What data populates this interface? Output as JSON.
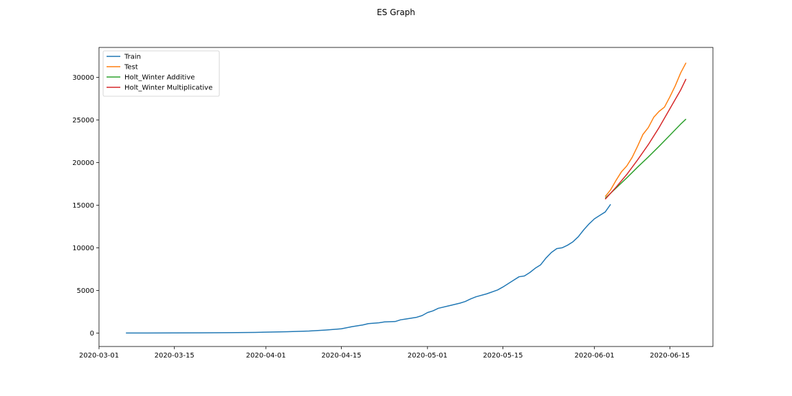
{
  "chart_data": {
    "type": "line",
    "title": "ES Graph",
    "xlabel": "",
    "ylabel": "",
    "x_axis_type": "date",
    "xlim": [
      "2020-03-01",
      "2020-06-23"
    ],
    "ylim": [
      -1580,
      33500
    ],
    "x_ticks": [
      "2020-03-01",
      "2020-03-15",
      "2020-04-01",
      "2020-04-15",
      "2020-05-01",
      "2020-05-15",
      "2020-06-01",
      "2020-06-15"
    ],
    "y_ticks": [
      0,
      5000,
      10000,
      15000,
      20000,
      25000,
      30000
    ],
    "grid": false,
    "legend_position": "top-left",
    "series": [
      {
        "name": "Train",
        "color": "#1f77b4",
        "points": [
          [
            "2020-03-06",
            0
          ],
          [
            "2020-03-10",
            2
          ],
          [
            "2020-03-15",
            10
          ],
          [
            "2020-03-20",
            25
          ],
          [
            "2020-03-25",
            45
          ],
          [
            "2020-03-30",
            75
          ],
          [
            "2020-04-01",
            100
          ],
          [
            "2020-04-05",
            150
          ],
          [
            "2020-04-09",
            230
          ],
          [
            "2020-04-12",
            350
          ],
          [
            "2020-04-14",
            450
          ],
          [
            "2020-04-15",
            500
          ],
          [
            "2020-04-17",
            750
          ],
          [
            "2020-04-19",
            950
          ],
          [
            "2020-04-20",
            1100
          ],
          [
            "2020-04-22",
            1200
          ],
          [
            "2020-04-23",
            1300
          ],
          [
            "2020-04-25",
            1350
          ],
          [
            "2020-04-26",
            1550
          ],
          [
            "2020-04-27",
            1650
          ],
          [
            "2020-04-29",
            1850
          ],
          [
            "2020-04-30",
            2050
          ],
          [
            "2020-05-01",
            2400
          ],
          [
            "2020-05-02",
            2600
          ],
          [
            "2020-05-03",
            2900
          ],
          [
            "2020-05-05",
            3200
          ],
          [
            "2020-05-07",
            3500
          ],
          [
            "2020-05-08",
            3700
          ],
          [
            "2020-05-09",
            4000
          ],
          [
            "2020-05-10",
            4250
          ],
          [
            "2020-05-12",
            4600
          ],
          [
            "2020-05-14",
            5050
          ],
          [
            "2020-05-15",
            5400
          ],
          [
            "2020-05-17",
            6200
          ],
          [
            "2020-05-18",
            6600
          ],
          [
            "2020-05-19",
            6700
          ],
          [
            "2020-05-20",
            7100
          ],
          [
            "2020-05-21",
            7600
          ],
          [
            "2020-05-22",
            8000
          ],
          [
            "2020-05-23",
            8800
          ],
          [
            "2020-05-24",
            9450
          ],
          [
            "2020-05-25",
            9900
          ],
          [
            "2020-05-26",
            10000
          ],
          [
            "2020-05-27",
            10300
          ],
          [
            "2020-05-28",
            10700
          ],
          [
            "2020-05-29",
            11300
          ],
          [
            "2020-05-30",
            12100
          ],
          [
            "2020-05-31",
            12800
          ],
          [
            "2020-06-01",
            13400
          ],
          [
            "2020-06-02",
            13800
          ],
          [
            "2020-06-03",
            14200
          ],
          [
            "2020-06-04",
            15100
          ]
        ]
      },
      {
        "name": "Test",
        "color": "#ff7f0e",
        "points": [
          [
            "2020-06-03",
            16000
          ],
          [
            "2020-06-04",
            16800
          ],
          [
            "2020-06-05",
            17900
          ],
          [
            "2020-06-06",
            18900
          ],
          [
            "2020-06-07",
            19600
          ],
          [
            "2020-06-08",
            20600
          ],
          [
            "2020-06-09",
            21900
          ],
          [
            "2020-06-10",
            23300
          ],
          [
            "2020-06-11",
            24100
          ],
          [
            "2020-06-12",
            25300
          ],
          [
            "2020-06-13",
            26000
          ],
          [
            "2020-06-14",
            26500
          ],
          [
            "2020-06-15",
            27700
          ],
          [
            "2020-06-16",
            29000
          ],
          [
            "2020-06-17",
            30500
          ],
          [
            "2020-06-18",
            31700
          ]
        ]
      },
      {
        "name": "Holt_Winter Additive",
        "color": "#2ca02c",
        "points": [
          [
            "2020-06-03",
            15800
          ],
          [
            "2020-06-05",
            17000
          ],
          [
            "2020-06-07",
            18200
          ],
          [
            "2020-06-09",
            19450
          ],
          [
            "2020-06-11",
            20650
          ],
          [
            "2020-06-13",
            21900
          ],
          [
            "2020-06-15",
            23200
          ],
          [
            "2020-06-17",
            24500
          ],
          [
            "2020-06-18",
            25100
          ]
        ]
      },
      {
        "name": "Holt_Winter Multiplicative",
        "color": "#d62728",
        "points": [
          [
            "2020-06-03",
            15700
          ],
          [
            "2020-06-05",
            17100
          ],
          [
            "2020-06-07",
            18600
          ],
          [
            "2020-06-09",
            20300
          ],
          [
            "2020-06-11",
            22100
          ],
          [
            "2020-06-13",
            24100
          ],
          [
            "2020-06-15",
            26300
          ],
          [
            "2020-06-17",
            28500
          ],
          [
            "2020-06-18",
            29800
          ]
        ]
      }
    ]
  }
}
